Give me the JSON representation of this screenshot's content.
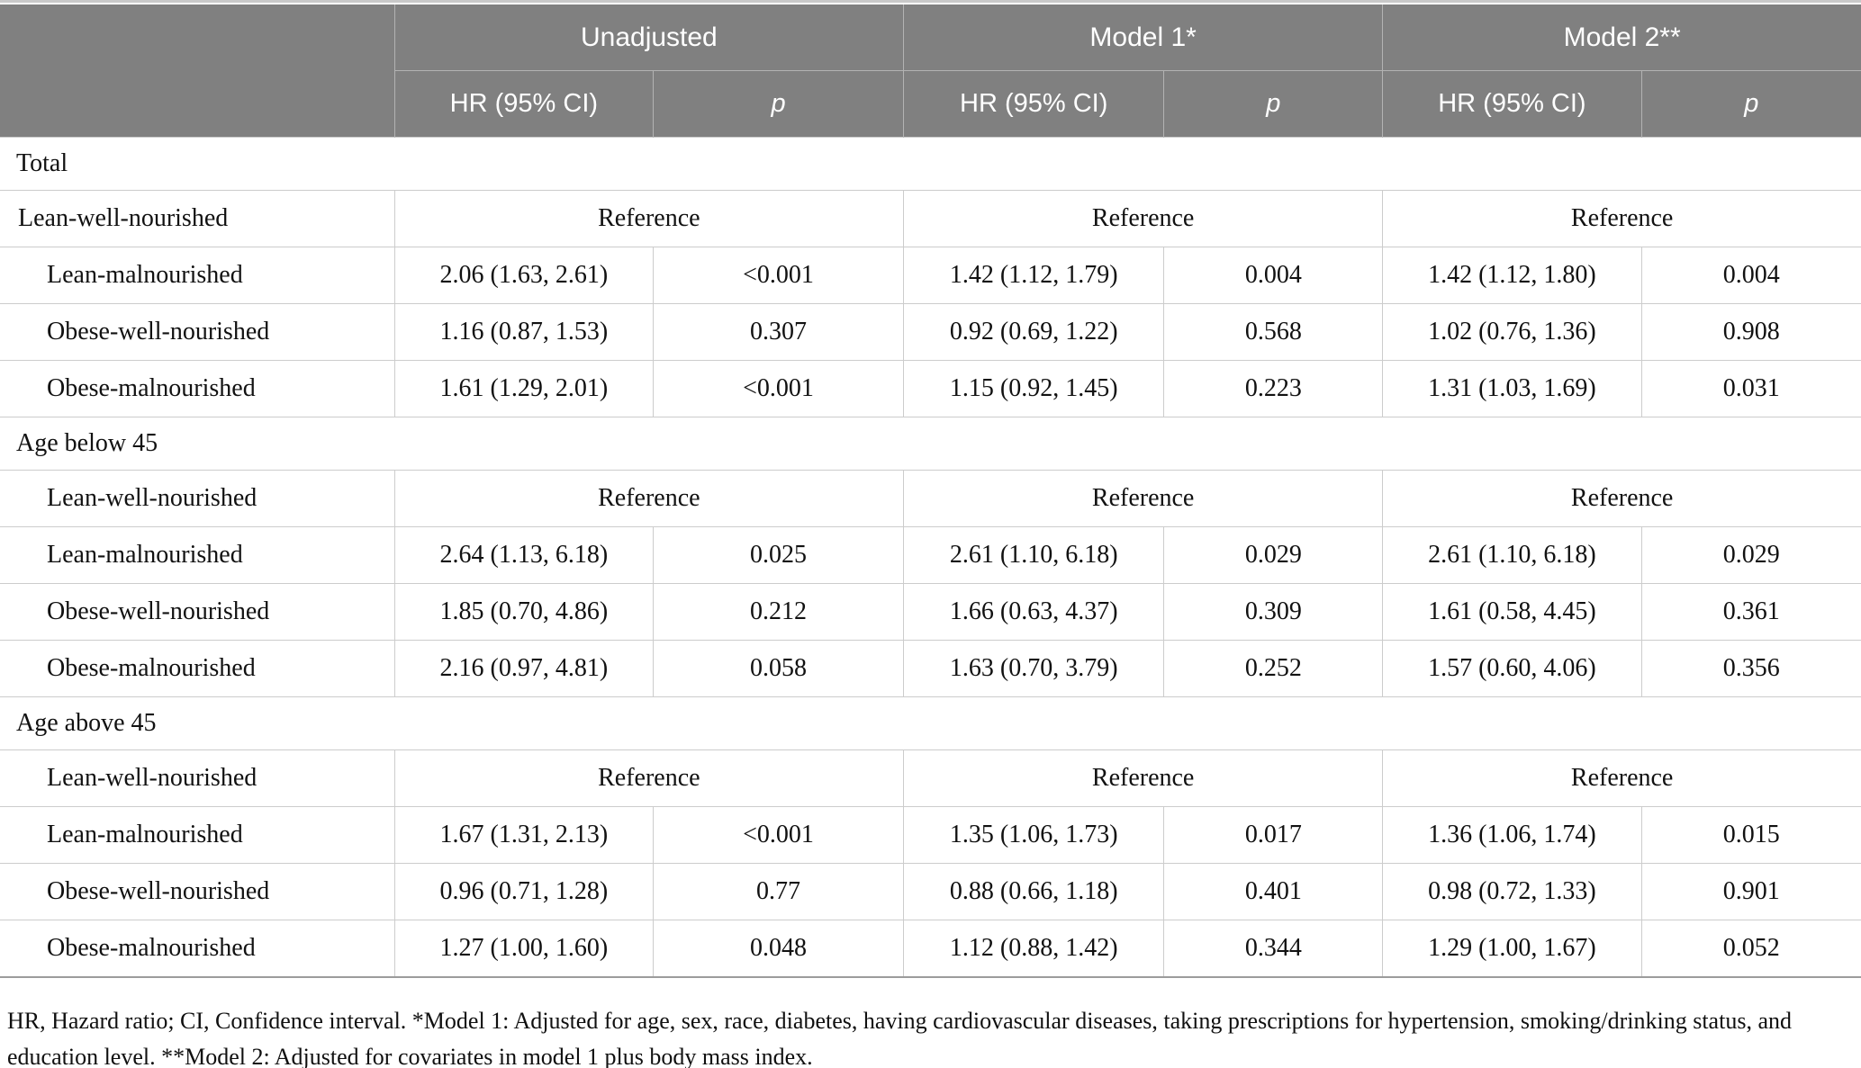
{
  "table": {
    "header": {
      "groups": [
        {
          "label": "Unadjusted"
        },
        {
          "label": "Model 1*"
        },
        {
          "label": "Model 2**"
        }
      ],
      "hr_label": "HR (95% CI)",
      "p_label": "p"
    },
    "sections": [
      {
        "title": "Total",
        "rows": [
          {
            "label": "Lean-well-nourished",
            "indent": 0,
            "reference": true,
            "ref_label": "Reference"
          },
          {
            "label": "Lean-malnourished",
            "indent": 1,
            "cells": [
              "2.06 (1.63, 2.61)",
              "<0.001",
              "1.42 (1.12, 1.79)",
              "0.004",
              "1.42 (1.12, 1.80)",
              "0.004"
            ]
          },
          {
            "label": "Obese-well-nourished",
            "indent": 1,
            "cells": [
              "1.16 (0.87, 1.53)",
              "0.307",
              "0.92 (0.69, 1.22)",
              "0.568",
              "1.02 (0.76, 1.36)",
              "0.908"
            ]
          },
          {
            "label": "Obese-malnourished",
            "indent": 1,
            "cells": [
              "1.61 (1.29, 2.01)",
              "<0.001",
              "1.15 (0.92, 1.45)",
              "0.223",
              "1.31 (1.03, 1.69)",
              "0.031"
            ]
          }
        ]
      },
      {
        "title": "Age below 45",
        "rows": [
          {
            "label": "Lean-well-nourished",
            "indent": 1,
            "reference": true,
            "ref_label": "Reference"
          },
          {
            "label": "Lean-malnourished",
            "indent": 1,
            "cells": [
              "2.64 (1.13, 6.18)",
              "0.025",
              "2.61 (1.10, 6.18)",
              "0.029",
              "2.61 (1.10, 6.18)",
              "0.029"
            ]
          },
          {
            "label": "Obese-well-nourished",
            "indent": 1,
            "cells": [
              "1.85 (0.70, 4.86)",
              "0.212",
              "1.66 (0.63, 4.37)",
              "0.309",
              "1.61 (0.58, 4.45)",
              "0.361"
            ]
          },
          {
            "label": "Obese-malnourished",
            "indent": 1,
            "cells": [
              "2.16 (0.97, 4.81)",
              "0.058",
              "1.63 (0.70, 3.79)",
              "0.252",
              "1.57 (0.60, 4.06)",
              "0.356"
            ]
          }
        ]
      },
      {
        "title": "Age above 45",
        "rows": [
          {
            "label": "Lean-well-nourished",
            "indent": 1,
            "reference": true,
            "ref_label": "Reference"
          },
          {
            "label": "Lean-malnourished",
            "indent": 1,
            "cells": [
              "1.67 (1.31, 2.13)",
              "<0.001",
              "1.35 (1.06, 1.73)",
              "0.017",
              "1.36 (1.06, 1.74)",
              "0.015"
            ]
          },
          {
            "label": "Obese-well-nourished",
            "indent": 1,
            "cells": [
              "0.96 (0.71, 1.28)",
              "0.77",
              "0.88 (0.66, 1.18)",
              "0.401",
              "0.98 (0.72, 1.33)",
              "0.901"
            ]
          },
          {
            "label": "Obese-malnourished",
            "indent": 1,
            "cells": [
              "1.27 (1.00, 1.60)",
              "0.048",
              "1.12 (0.88, 1.42)",
              "0.344",
              "1.29 (1.00, 1.67)",
              "0.052"
            ]
          }
        ]
      }
    ]
  },
  "footnote": "HR, Hazard ratio; CI, Confidence interval. *Model 1: Adjusted for age, sex, race, diabetes, having cardiovascular diseases, taking prescriptions for hypertension, smoking/drinking status, and education level. **Model 2: Adjusted for covariates in model 1 plus body mass index.",
  "colors": {
    "header_bg": "#808080",
    "header_text": "#ffffff",
    "border_light": "#cccccc",
    "border_dark": "#9c9c9c",
    "body_text": "#111111"
  }
}
